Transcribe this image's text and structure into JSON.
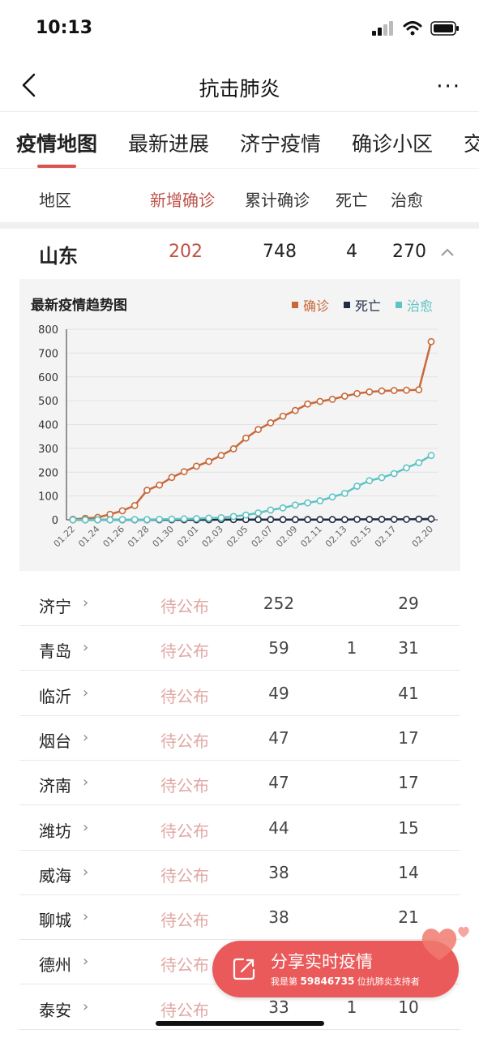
{
  "status_bar": {
    "time": "10:13"
  },
  "nav": {
    "title": "抗击肺炎",
    "more_label": "···"
  },
  "tabs": [
    {
      "label": "疫情地图",
      "active": true
    },
    {
      "label": "最新进展",
      "active": false
    },
    {
      "label": "济宁疫情",
      "active": false
    },
    {
      "label": "确诊小区",
      "active": false
    },
    {
      "label": "交",
      "active": false
    }
  ],
  "columns": {
    "region": "地区",
    "new_confirmed": "新增确诊",
    "total_confirmed": "累计确诊",
    "deaths": "死亡",
    "cured": "治愈"
  },
  "province": {
    "name": "山东",
    "new_confirmed": "202",
    "total_confirmed": "748",
    "deaths": "4",
    "cured": "270"
  },
  "chart_data": {
    "type": "line",
    "title": "最新疫情趋势图",
    "x": [
      "01.22",
      "01.23",
      "01.24",
      "01.25",
      "01.26",
      "01.27",
      "01.28",
      "01.29",
      "01.30",
      "01.31",
      "02.01",
      "02.02",
      "02.03",
      "02.04",
      "02.05",
      "02.06",
      "02.07",
      "02.08",
      "02.09",
      "02.10",
      "02.11",
      "02.12",
      "02.13",
      "02.14",
      "02.15",
      "02.16",
      "02.17",
      "02.18",
      "02.19",
      "02.20"
    ],
    "x_tick_labels": [
      "01.22",
      "01.24",
      "01.26",
      "01.28",
      "01.30",
      "02.01",
      "02.03",
      "02.05",
      "02.07",
      "02.09",
      "02.11",
      "02.13",
      "02.15",
      "02.17",
      "02.20"
    ],
    "yticks": [
      0,
      100,
      200,
      300,
      400,
      500,
      600,
      700,
      800
    ],
    "ylim": [
      0,
      800
    ],
    "legend_position": "top-right",
    "series": [
      {
        "name": "确诊",
        "color": "#c8693a",
        "values": [
          2,
          6,
          10,
          23,
          38,
          60,
          124,
          146,
          178,
          202,
          225,
          245,
          270,
          298,
          343,
          379,
          407,
          435,
          459,
          486,
          497,
          506,
          519,
          530,
          537,
          541,
          543,
          544,
          546,
          748
        ]
      },
      {
        "name": "死亡",
        "color": "#1f2d44",
        "values": [
          0,
          0,
          0,
          0,
          0,
          0,
          0,
          0,
          0,
          0,
          0,
          0,
          1,
          1,
          1,
          1,
          1,
          1,
          1,
          1,
          1,
          1,
          1,
          2,
          2,
          2,
          2,
          2,
          3,
          4
        ]
      },
      {
        "name": "治愈",
        "color": "#5fc3c3",
        "values": [
          0,
          0,
          0,
          0,
          1,
          1,
          1,
          2,
          3,
          4,
          5,
          7,
          9,
          14,
          20,
          29,
          41,
          50,
          62,
          71,
          80,
          96,
          111,
          141,
          164,
          177,
          194,
          218,
          240,
          270
        ]
      }
    ]
  },
  "cities": [
    {
      "name": "济宁",
      "new": "待公布",
      "total": "252",
      "deaths": "",
      "cured": "29"
    },
    {
      "name": "青岛",
      "new": "待公布",
      "total": "59",
      "deaths": "1",
      "cured": "31"
    },
    {
      "name": "临沂",
      "new": "待公布",
      "total": "49",
      "deaths": "",
      "cured": "41"
    },
    {
      "name": "烟台",
      "new": "待公布",
      "total": "47",
      "deaths": "",
      "cured": "17"
    },
    {
      "name": "济南",
      "new": "待公布",
      "total": "47",
      "deaths": "",
      "cured": "17"
    },
    {
      "name": "潍坊",
      "new": "待公布",
      "total": "44",
      "deaths": "",
      "cured": "15"
    },
    {
      "name": "威海",
      "new": "待公布",
      "total": "38",
      "deaths": "",
      "cured": "14"
    },
    {
      "name": "聊城",
      "new": "待公布",
      "total": "38",
      "deaths": "",
      "cured": "21"
    },
    {
      "name": "德州",
      "new": "待公布",
      "total": "",
      "deaths": "",
      "cured": ""
    },
    {
      "name": "泰安",
      "new": "待公布",
      "total": "33",
      "deaths": "1",
      "cured": "10"
    }
  ],
  "city_arrow": "›",
  "share": {
    "title": "分享实时疫情",
    "sub_prefix": "我是第",
    "supporter_number": "59846735",
    "sub_suffix": "位抗肺炎支持者"
  }
}
